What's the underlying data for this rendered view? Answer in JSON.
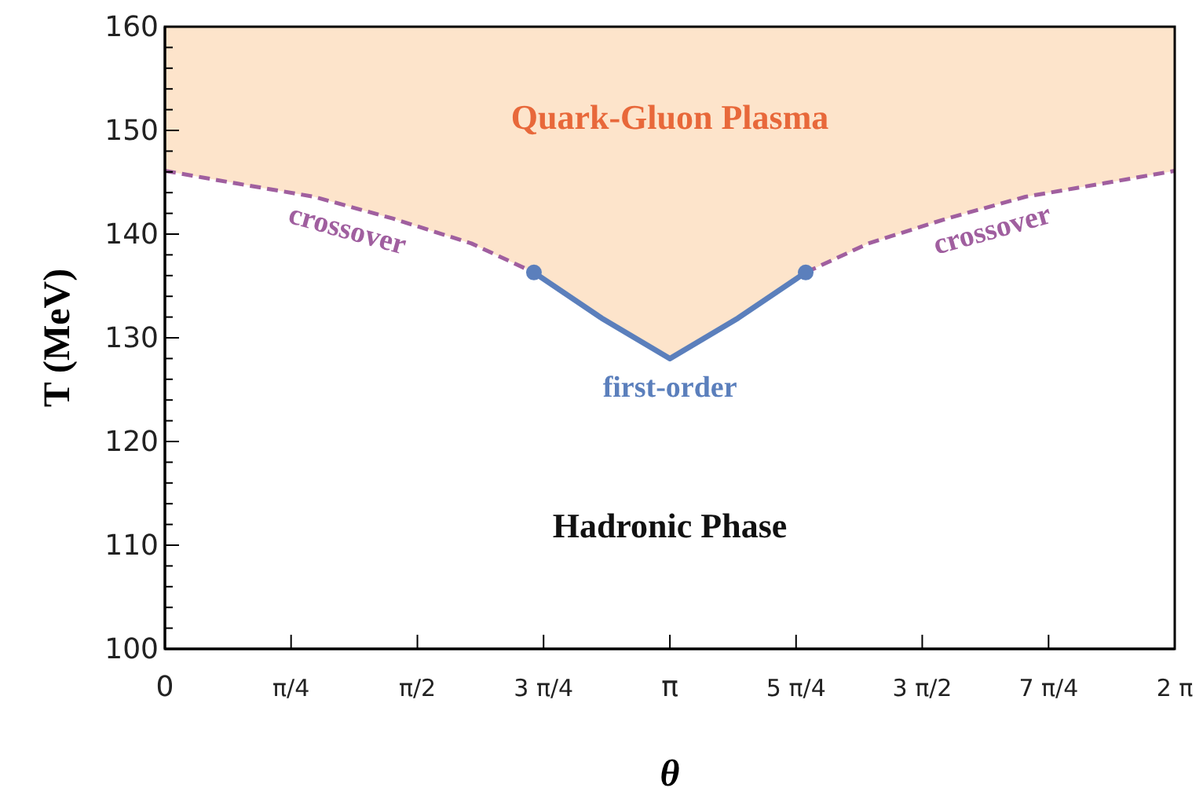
{
  "chart_data": {
    "type": "line",
    "xlabel": "θ",
    "ylabel": "T (MeV)",
    "xlim": [
      0,
      6.283
    ],
    "ylim": [
      100,
      160
    ],
    "xticks": [
      0,
      {
        "value": 0.785,
        "label": "π/4"
      },
      {
        "value": 1.571,
        "label": "π/2"
      },
      {
        "value": 2.356,
        "label": "3 π/4"
      },
      {
        "value": 3.142,
        "label": "π"
      },
      {
        "value": 3.927,
        "label": "5 π/4"
      },
      {
        "value": 4.712,
        "label": "3 π/2"
      },
      {
        "value": 5.498,
        "label": "7 π/4"
      },
      {
        "value": 6.283,
        "label": "2 π"
      }
    ],
    "yticks": [
      100,
      {
        "value": 102,
        "label": null
      },
      {
        "value": 104,
        "label": null
      },
      {
        "value": 106,
        "label": null
      },
      {
        "value": 108,
        "label": null
      },
      110,
      {
        "value": 112,
        "label": null
      },
      {
        "value": 114,
        "label": null
      },
      {
        "value": 116,
        "label": null
      },
      {
        "value": 118,
        "label": null
      },
      120,
      {
        "value": 122,
        "label": null
      },
      {
        "value": 124,
        "label": null
      },
      {
        "value": 126,
        "label": null
      },
      {
        "value": 128,
        "label": null
      },
      130,
      {
        "value": 132,
        "label": null
      },
      {
        "value": 134,
        "label": null
      },
      {
        "value": 136,
        "label": null
      },
      {
        "value": 138,
        "label": null
      },
      140,
      {
        "value": 142,
        "label": null
      },
      {
        "value": 144,
        "label": null
      },
      {
        "value": 146,
        "label": null
      },
      {
        "value": 148,
        "label": null
      },
      150,
      {
        "value": 152,
        "label": null
      },
      {
        "value": 154,
        "label": null
      },
      {
        "value": 156,
        "label": null
      },
      {
        "value": 158,
        "label": null
      },
      160
    ],
    "annotations": [
      "Quark-Gluon Plasma",
      "Hadronic Phase"
    ],
    "series": [
      {
        "name": "crossover",
        "color": "#a05f9f",
        "line_style": "dashed",
        "x": [
          0,
          0.44,
          0.929,
          1.418,
          1.907,
          2.296
        ],
        "values": [
          146.1,
          144.9,
          143.6,
          141.5,
          139.1,
          136.3
        ]
      },
      {
        "name": "first-order",
        "color": "#5b7fbc",
        "line_style": "solid",
        "x": [
          2.296,
          2.717,
          3.142,
          3.566,
          3.987
        ],
        "values": [
          136.3,
          131.9,
          128.0,
          131.9,
          136.3
        ]
      },
      {
        "name": "crossover",
        "color": "#a05f9f",
        "line_style": "dashed",
        "x": [
          3.987,
          4.376,
          4.865,
          5.354,
          5.843,
          6.283
        ],
        "values": [
          136.3,
          139.1,
          141.5,
          143.6,
          144.9,
          146.1
        ]
      },
      {
        "type": "scatter",
        "color": "#5b7fbc",
        "marker": "circle",
        "x": [
          2.296,
          3.987
        ],
        "values": [
          136.3,
          136.3
        ]
      }
    ]
  }
}
